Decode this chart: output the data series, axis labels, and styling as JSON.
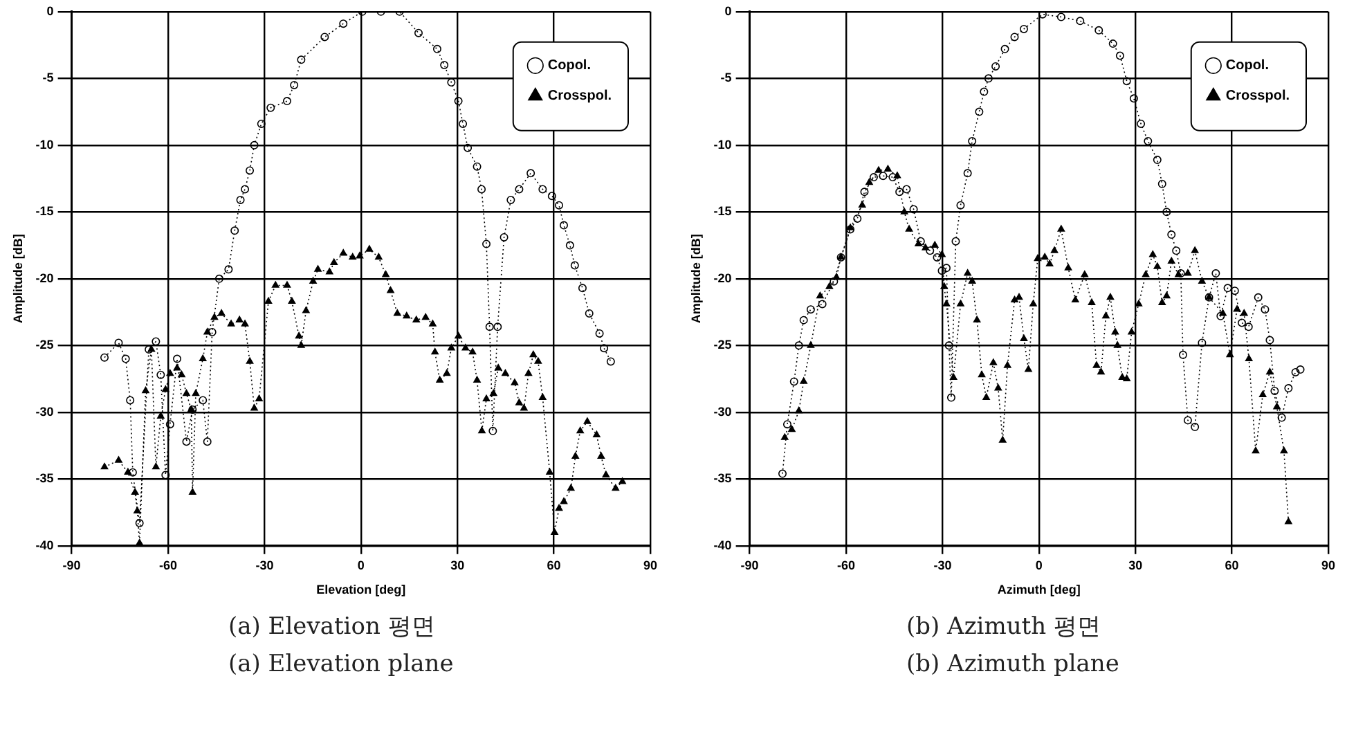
{
  "chart_data": [
    {
      "type": "line",
      "xlabel": "Elevation [deg]",
      "ylabel": "Amplitude [dB]",
      "annotations": [
        "(a) Elevation 평면",
        "(a) Elevation plane"
      ],
      "xlim": [
        -90,
        90
      ],
      "xticks": [
        -90,
        -60,
        -30,
        0,
        30,
        60,
        90
      ],
      "ylim": [
        -40,
        0
      ],
      "yticks": [
        0,
        -5,
        -10,
        -15,
        -20,
        -25,
        -30,
        -35,
        -40
      ],
      "grid": true,
      "legend": "top right",
      "line_style": "dotted",
      "series": [
        {
          "name": "Copol.",
          "color": "#000000",
          "marker": "circle",
          "x": [
            -79.8,
            -75.4,
            -73.2,
            -71.8,
            -71.0,
            -68.9,
            -66.0,
            -63.8,
            -62.3,
            -60.8,
            -59.4,
            -57.2,
            -54.3,
            -52.4,
            -49.2,
            -47.8,
            -46.3,
            -44.1,
            -41.2,
            -39.3,
            -37.5,
            -36.1,
            -34.6,
            -33.2,
            -31.0,
            -28.1,
            -23.0,
            -20.8,
            -18.6,
            -11.3,
            -5.5,
            0.4,
            6.2,
            12.0,
            17.9,
            23.7,
            25.9,
            28.1,
            30.3,
            31.7,
            33.2,
            36.1,
            37.5,
            39.0,
            40.0,
            41.0,
            42.5,
            44.5,
            46.6,
            49.2,
            52.8,
            56.5,
            59.4,
            61.6,
            63.1,
            65.0,
            66.5,
            68.9,
            71.0,
            74.2,
            75.6,
            77.7
          ],
          "values": [
            -25.9,
            -24.8,
            -26.0,
            -29.1,
            -34.5,
            -38.3,
            -25.3,
            -24.7,
            -27.2,
            -34.7,
            -30.9,
            -26.0,
            -32.2,
            -29.8,
            -29.1,
            -32.2,
            -24.0,
            -20.0,
            -19.3,
            -16.4,
            -14.1,
            -13.3,
            -11.9,
            -10.0,
            -8.4,
            -7.2,
            -6.7,
            -5.5,
            -3.6,
            -1.9,
            -0.9,
            0,
            0,
            0,
            -1.6,
            -2.8,
            -4.0,
            -5.3,
            -6.7,
            -8.4,
            -10.2,
            -11.6,
            -13.3,
            -17.4,
            -23.6,
            -31.4,
            -23.6,
            -16.9,
            -14.1,
            -13.3,
            -12.1,
            -13.3,
            -13.8,
            -14.5,
            -16.0,
            -17.5,
            -19.0,
            -20.7,
            -22.6,
            -24.1,
            -25.2,
            -26.2
          ]
        },
        {
          "name": "Crosspol.",
          "color": "#000000",
          "marker": "triangle",
          "x": [
            -79.8,
            -75.4,
            -72.5,
            -70.3,
            -69.6,
            -68.9,
            -67.0,
            -65.2,
            -63.8,
            -62.3,
            -60.8,
            -59.4,
            -57.2,
            -55.8,
            -54.3,
            -52.8,
            -52.4,
            -51.4,
            -49.2,
            -47.8,
            -45.6,
            -43.4,
            -40.4,
            -37.8,
            -36.1,
            -34.6,
            -33.2,
            -31.7,
            -28.8,
            -26.6,
            -23.0,
            -21.5,
            -19.3,
            -18.6,
            -17.1,
            -14.9,
            -13.4,
            -9.8,
            -8.4,
            -5.5,
            -2.6,
            -0.4,
            2.6,
            5.5,
            7.7,
            9.2,
            11.3,
            14.2,
            17.2,
            20.1,
            22.3,
            23.0,
            24.5,
            26.7,
            28.1,
            30.3,
            32.5,
            34.7,
            36.1,
            37.6,
            39.0,
            41.2,
            42.7,
            44.9,
            47.8,
            49.2,
            50.7,
            52.1,
            53.6,
            55.1,
            56.5,
            58.7,
            60.2,
            61.6,
            63.1,
            65.3,
            66.7,
            68.2,
            70.4,
            73.3,
            74.7,
            76.2,
            79.2,
            81.3
          ],
          "values": [
            -34.1,
            -33.6,
            -34.5,
            -36.0,
            -37.4,
            -39.8,
            -28.4,
            -25.3,
            -34.1,
            -30.3,
            -28.3,
            -27.1,
            -26.7,
            -27.2,
            -28.6,
            -29.8,
            -36.0,
            -28.6,
            -26.0,
            -24.0,
            -22.9,
            -22.6,
            -23.4,
            -23.1,
            -23.4,
            -26.2,
            -29.7,
            -29.0,
            -21.7,
            -20.5,
            -20.5,
            -21.7,
            -24.3,
            -25.0,
            -22.4,
            -20.2,
            -19.3,
            -19.5,
            -18.8,
            -18.1,
            -18.4,
            -18.3,
            -17.8,
            -18.4,
            -19.7,
            -20.9,
            -22.6,
            -22.8,
            -23.1,
            -22.9,
            -23.4,
            -25.5,
            -27.6,
            -27.1,
            -25.2,
            -24.3,
            -25.2,
            -25.5,
            -27.6,
            -31.4,
            -29.0,
            -28.6,
            -26.7,
            -27.1,
            -27.8,
            -29.3,
            -29.7,
            -27.1,
            -25.7,
            -26.2,
            -28.9,
            -34.5,
            -39.0,
            -37.2,
            -36.7,
            -35.7,
            -33.3,
            -31.4,
            -30.7,
            -31.7,
            -33.3,
            -34.7,
            -35.7,
            -35.2
          ]
        }
      ]
    },
    {
      "type": "line",
      "xlabel": "Azimuth [deg]",
      "ylabel": "Amplitude [dB]",
      "annotations": [
        "(b) Azimuth 평면",
        "(b) Azimuth plane"
      ],
      "xlim": [
        -90,
        90
      ],
      "xticks": [
        -90,
        -60,
        -30,
        0,
        30,
        60,
        90
      ],
      "ylim": [
        -40,
        0
      ],
      "yticks": [
        0,
        -5,
        -10,
        -15,
        -20,
        -25,
        -30,
        -35,
        -40
      ],
      "grid": true,
      "legend": "top right",
      "line_style": "dotted",
      "series": [
        {
          "name": "Copol.",
          "color": "#000000",
          "marker": "circle",
          "x": [
            -79.8,
            -78.3,
            -76.2,
            -74.7,
            -73.2,
            -71.0,
            -67.4,
            -63.8,
            -61.6,
            -58.7,
            -56.5,
            -54.3,
            -51.4,
            -48.5,
            -45.5,
            -43.4,
            -41.2,
            -39.0,
            -36.8,
            -33.9,
            -31.7,
            -30.2,
            -28.8,
            -28.0,
            -27.3,
            -25.9,
            -24.4,
            -22.2,
            -20.8,
            -18.6,
            -17.1,
            -15.7,
            -13.5,
            -10.6,
            -7.6,
            -4.7,
            1.1,
            6.9,
            12.8,
            18.6,
            23.0,
            25.2,
            27.3,
            29.5,
            31.7,
            33.9,
            36.8,
            38.3,
            39.7,
            41.2,
            42.7,
            44.1,
            44.8,
            46.3,
            48.5,
            50.7,
            52.9,
            55.0,
            56.5,
            58.7,
            60.9,
            63.1,
            65.2,
            68.2,
            70.3,
            71.8,
            73.3,
            75.5,
            77.6,
            79.8,
            81.3
          ],
          "values": [
            -34.6,
            -30.9,
            -27.7,
            -25.0,
            -23.1,
            -22.3,
            -21.9,
            -20.2,
            -18.4,
            -16.3,
            -15.5,
            -13.5,
            -12.4,
            -12.3,
            -12.4,
            -13.5,
            -13.3,
            -14.8,
            -17.2,
            -17.9,
            -18.4,
            -19.4,
            -19.2,
            -25.0,
            -28.9,
            -17.2,
            -14.5,
            -12.1,
            -9.7,
            -7.5,
            -6.0,
            -5.0,
            -4.1,
            -2.8,
            -1.9,
            -1.3,
            -0.2,
            -0.4,
            -0.7,
            -1.4,
            -2.4,
            -3.3,
            -5.2,
            -6.5,
            -8.4,
            -9.7,
            -11.1,
            -12.9,
            -15.0,
            -16.7,
            -17.9,
            -19.6,
            -25.7,
            -30.6,
            -31.1,
            -24.8,
            -21.4,
            -19.6,
            -22.8,
            -20.7,
            -20.9,
            -23.3,
            -23.6,
            -21.4,
            -22.3,
            -24.6,
            -28.4,
            -30.4,
            -28.2,
            -27.0,
            -26.8
          ]
        },
        {
          "name": "Crosspol.",
          "color": "#000000",
          "marker": "triangle",
          "x": [
            -79.1,
            -76.9,
            -74.7,
            -73.2,
            -71.0,
            -68.1,
            -65.2,
            -63.0,
            -61.6,
            -58.7,
            -55.0,
            -52.8,
            -49.9,
            -47.0,
            -44.1,
            -41.9,
            -40.4,
            -37.5,
            -35.3,
            -32.4,
            -30.2,
            -29.5,
            -28.8,
            -26.6,
            -24.4,
            -22.2,
            -20.8,
            -19.3,
            -17.8,
            -16.4,
            -14.2,
            -12.7,
            -11.3,
            -9.8,
            -7.6,
            -6.2,
            -4.7,
            -3.3,
            -1.8,
            -0.4,
            1.8,
            3.3,
            4.8,
            6.9,
            9.1,
            11.3,
            14.2,
            16.4,
            17.9,
            19.3,
            20.8,
            22.2,
            23.7,
            24.4,
            25.9,
            27.3,
            28.8,
            31.0,
            33.2,
            35.4,
            36.8,
            38.3,
            39.7,
            41.2,
            43.4,
            46.3,
            48.5,
            50.7,
            52.9,
            57.2,
            59.4,
            61.6,
            63.8,
            65.3,
            67.4,
            69.6,
            71.8,
            74.0,
            76.2,
            77.6
          ],
          "values": [
            -31.9,
            -31.3,
            -29.9,
            -27.7,
            -25.0,
            -21.3,
            -20.6,
            -19.9,
            -18.4,
            -16.2,
            -14.5,
            -12.8,
            -11.9,
            -11.8,
            -12.3,
            -15.0,
            -16.3,
            -17.4,
            -17.7,
            -17.5,
            -18.2,
            -20.6,
            -21.9,
            -27.4,
            -21.9,
            -19.6,
            -20.2,
            -23.1,
            -27.2,
            -28.9,
            -26.3,
            -28.2,
            -32.1,
            -26.5,
            -21.6,
            -21.4,
            -24.5,
            -26.8,
            -21.9,
            -18.5,
            -18.4,
            -18.9,
            -17.9,
            -16.3,
            -19.2,
            -21.6,
            -19.7,
            -21.8,
            -26.5,
            -27.0,
            -22.8,
            -21.4,
            -24.0,
            -25.0,
            -27.4,
            -27.5,
            -24.0,
            -21.9,
            -19.7,
            -18.2,
            -19.1,
            -21.8,
            -21.3,
            -18.7,
            -19.7,
            -19.6,
            -17.9,
            -20.2,
            -21.4,
            -22.6,
            -25.7,
            -22.3,
            -22.6,
            -26.0,
            -32.9,
            -28.7,
            -27.0,
            -29.6,
            -32.9,
            -38.2
          ]
        }
      ]
    }
  ]
}
